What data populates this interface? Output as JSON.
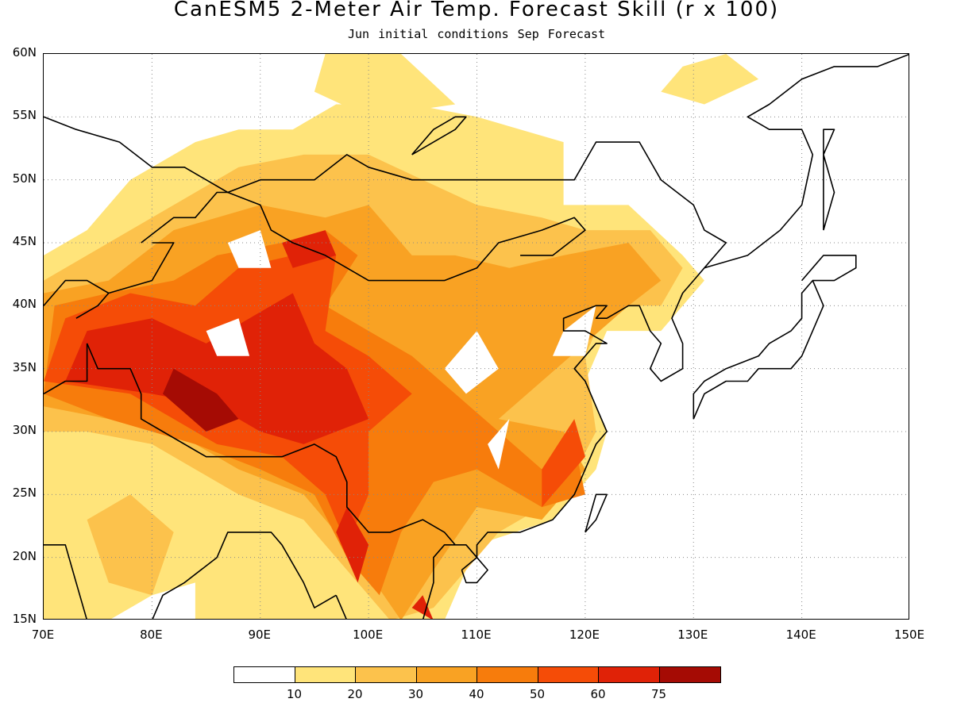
{
  "header": {
    "title": "CanESM5 2-Meter Air Temp. Forecast Skill (r x 100)",
    "subtitle": "Jun initial conditions  Sep Forecast"
  },
  "map": {
    "lon_range": [
      70,
      150
    ],
    "lat_range": [
      15,
      60
    ],
    "lat_labels": [
      "15N",
      "20N",
      "25N",
      "30N",
      "35N",
      "40N",
      "45N",
      "50N",
      "55N",
      "60N"
    ],
    "lon_labels": [
      "70E",
      "80E",
      "90E",
      "100E",
      "110E",
      "120E",
      "130E",
      "140E",
      "150E"
    ],
    "gridlines": "dotted",
    "colors": [
      "#ffffff",
      "#ffe47a",
      "#fcc24c",
      "#f9a223",
      "#f77c0c",
      "#f54c07",
      "#e02207",
      "#a50b04"
    ]
  },
  "colorbar": {
    "labels": [
      "10",
      "20",
      "30",
      "40",
      "50",
      "60",
      "75"
    ]
  }
}
